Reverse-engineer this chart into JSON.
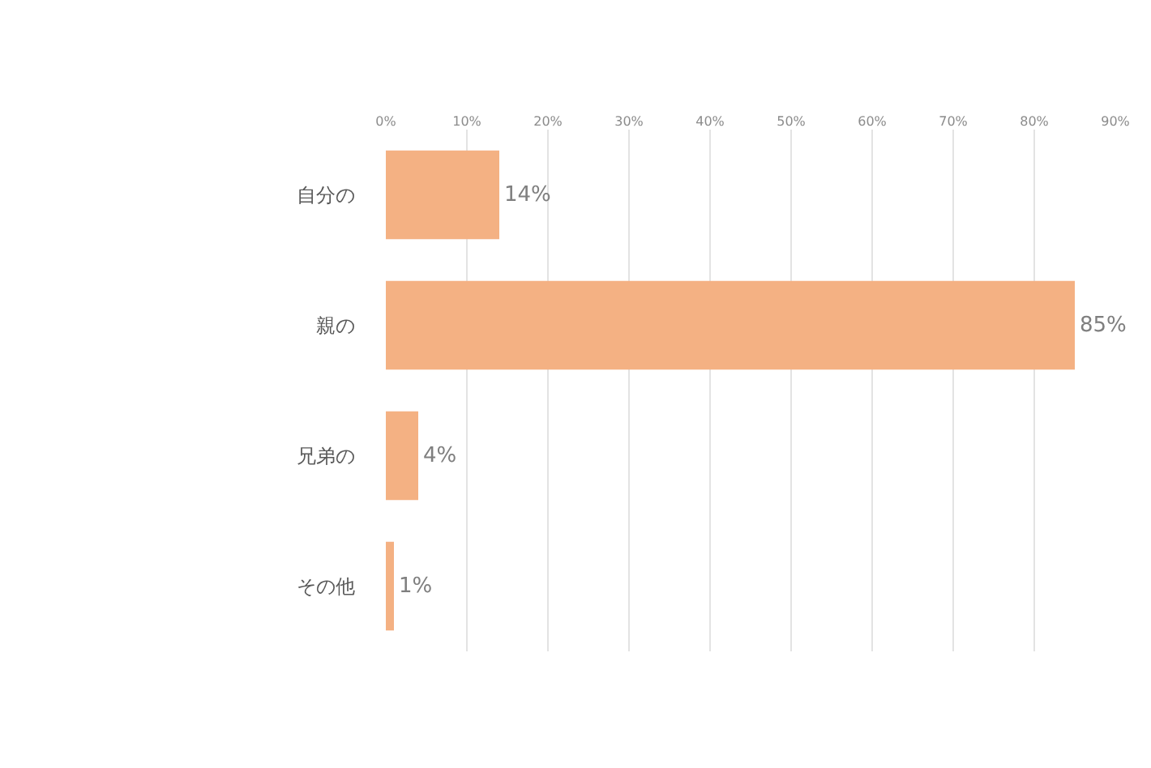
{
  "chart_data": {
    "type": "bar",
    "orientation": "horizontal",
    "categories": [
      "自分の",
      "親の",
      "兄弟の",
      "その他"
    ],
    "values": [
      14,
      85,
      4,
      1
    ],
    "color": "#f4b183",
    "xlim": [
      0,
      90
    ],
    "xticks": [
      {
        "value": 0,
        "label": "0%"
      },
      {
        "value": 10,
        "label": "10%"
      },
      {
        "value": 20,
        "label": "20%"
      },
      {
        "value": 30,
        "label": "30%"
      },
      {
        "value": 40,
        "label": "40%"
      },
      {
        "value": 50,
        "label": "50%"
      },
      {
        "value": 60,
        "label": "60%"
      },
      {
        "value": 70,
        "label": "70%"
      },
      {
        "value": 80,
        "label": "80%"
      },
      {
        "value": 90,
        "label": "90%"
      }
    ],
    "grid": "x",
    "value_labels": [
      "14%",
      "85%",
      "4%",
      "1%"
    ]
  }
}
